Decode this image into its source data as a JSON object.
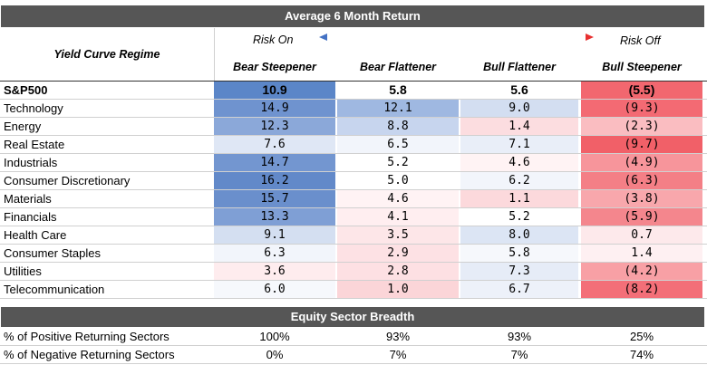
{
  "title": "Average 6 Month Return",
  "regime_label": "Yield Curve Regime",
  "risk_on": "Risk On",
  "risk_off": "Risk Off",
  "colors": {
    "header_bg": "#565656",
    "blue_strong": "#5b86c8",
    "red_strong": "#ef5a64",
    "arrow_blue": "#4472c4",
    "arrow_red": "#e83030"
  },
  "columns": [
    "Bear Steepener",
    "Bear Flattener",
    "Bull Flattener",
    "Bull Steepener"
  ],
  "sp500": {
    "name": "S&P500",
    "values": [
      "10.9",
      "5.8",
      "5.6",
      "(5.5)"
    ],
    "colors": [
      "#5b86c8",
      "#ffffff",
      "#ffffff",
      "#f2676f"
    ]
  },
  "sectors": [
    {
      "name": "Technology",
      "values": [
        "14.9",
        "12.1",
        "9.0",
        "(9.3)"
      ],
      "colors": [
        "#6f93cf",
        "#9fb8e1",
        "#d3def1",
        "#f36a73"
      ]
    },
    {
      "name": "Energy",
      "values": [
        "12.3",
        "8.8",
        "1.4",
        "(2.3)"
      ],
      "colors": [
        "#8ba8d9",
        "#c7d5ee",
        "#fcdde0",
        "#fabdc1"
      ]
    },
    {
      "name": "Real Estate",
      "values": [
        "7.6",
        "6.5",
        "7.1",
        "(9.7)"
      ],
      "colors": [
        "#dfe7f5",
        "#f2f5fb",
        "#e9eef8",
        "#f16068"
      ]
    },
    {
      "name": "Industrials",
      "values": [
        "14.7",
        "5.2",
        "4.6",
        "(4.9)"
      ],
      "colors": [
        "#7396d0",
        "#ffffff",
        "#fff3f4",
        "#f7959b"
      ]
    },
    {
      "name": "Consumer Discretionary",
      "values": [
        "16.2",
        "5.0",
        "6.2",
        "(6.3)"
      ],
      "colors": [
        "#6289c9",
        "#ffffff",
        "#f2f5fb",
        "#f47f86"
      ]
    },
    {
      "name": "Materials",
      "values": [
        "15.7",
        "4.6",
        "1.1",
        "(3.8)"
      ],
      "colors": [
        "#6a8fcc",
        "#fff3f4",
        "#fcd9dc",
        "#f8a7ac"
      ]
    },
    {
      "name": "Financials",
      "values": [
        "13.3",
        "4.1",
        "5.2",
        "(5.9)"
      ],
      "colors": [
        "#7f9fd5",
        "#ffeef0",
        "#ffffff",
        "#f4868d"
      ]
    },
    {
      "name": "Health Care",
      "values": [
        "9.1",
        "3.5",
        "8.0",
        "0.7"
      ],
      "colors": [
        "#d4dff1",
        "#fde6e8",
        "#dce5f4",
        "#fde9eb"
      ]
    },
    {
      "name": "Consumer Staples",
      "values": [
        "6.3",
        "2.9",
        "5.8",
        "1.4"
      ],
      "colors": [
        "#f2f5fb",
        "#fde1e4",
        "#f6f8fc",
        "#fef0f2"
      ]
    },
    {
      "name": "Utilities",
      "values": [
        "3.6",
        "2.8",
        "7.3",
        "(4.2)"
      ],
      "colors": [
        "#feecee",
        "#fde0e3",
        "#e6ecf7",
        "#f8a0a5"
      ]
    },
    {
      "name": "Telecommunication",
      "values": [
        "6.0",
        "1.0",
        "6.7",
        "(8.2)"
      ],
      "colors": [
        "#f6f8fc",
        "#fbd5d8",
        "#edf1f9",
        "#f36f78"
      ]
    }
  ],
  "breadth_title": "Equity Sector Breadth",
  "breadth": [
    {
      "name": "% of Positive Returning Sectors",
      "values": [
        "100%",
        "93%",
        "93%",
        "25%"
      ]
    },
    {
      "name": "% of Negative Returning Sectors",
      "values": [
        "0%",
        "7%",
        "7%",
        "74%"
      ]
    }
  ]
}
